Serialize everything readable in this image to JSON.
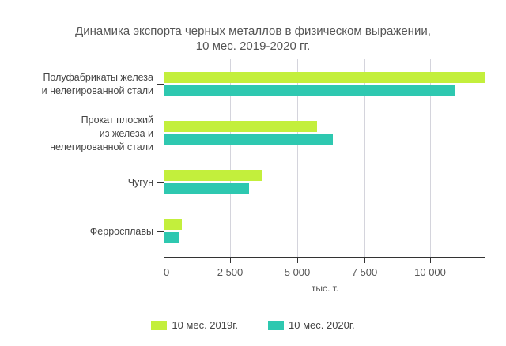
{
  "chart_data": {
    "type": "bar",
    "orientation": "horizontal",
    "title": "Динамика экспорта черных металлов в физическом выражении, 10 мес. 2019-2020 гг.",
    "title_lines": [
      "Динамика экспорта черных металлов в физическом выражении,",
      "10 мес. 2019-2020 гг."
    ],
    "categories": [
      "Полуфабрикаты железа и нелегированной стали",
      "Прокат плоский из железа и нелегированной стали",
      "Чугун",
      "Ферросплавы"
    ],
    "category_lines": [
      [
        "Полуфабрикаты железа",
        "и нелегированной стали"
      ],
      [
        "Прокат плоский",
        "из железа и",
        "нелегированной стали"
      ],
      [
        "Чугун"
      ],
      [
        "Ферросплавы"
      ]
    ],
    "series": [
      {
        "name": "10 мес. 2019г.",
        "color": "#c3ef3c",
        "values": [
          12080,
          5740,
          3660,
          650
        ]
      },
      {
        "name": "10 мес. 2020г.",
        "color": "#2ec8b0",
        "values": [
          10950,
          6340,
          3180,
          570
        ]
      }
    ],
    "xlabel": "тыс. т.",
    "ylabel": "",
    "xlim": [
      0,
      12100
    ],
    "xticks": [
      0,
      2500,
      5000,
      7500,
      10000
    ],
    "xtick_labels": [
      "0",
      "2 500",
      "5 000",
      "7 500",
      "10 000"
    ],
    "grid": true,
    "legend_position": "bottom"
  }
}
